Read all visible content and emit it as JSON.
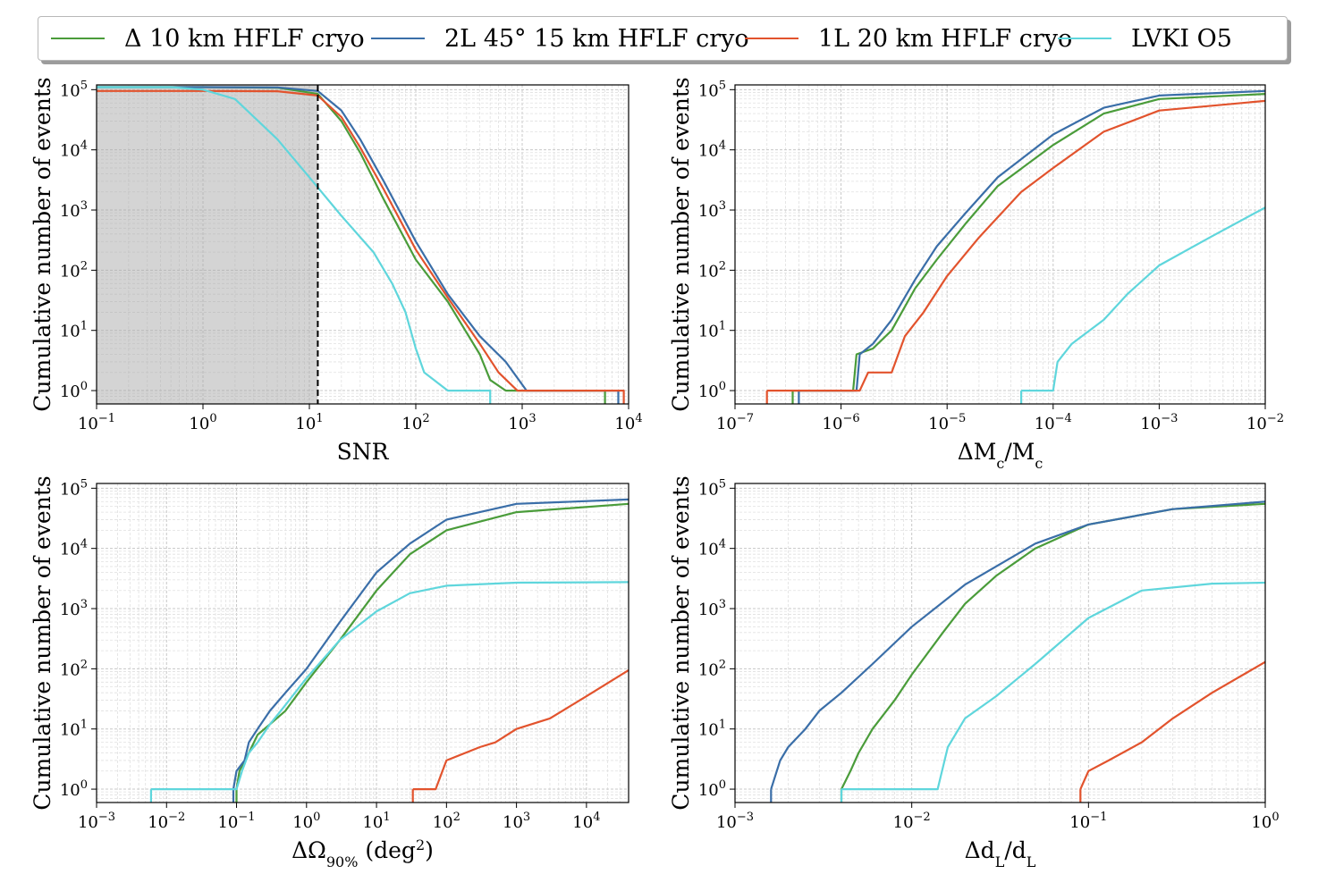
{
  "legend": [
    {
      "label": "Δ 10 km HFLF cryo",
      "color": "#4a9c3a"
    },
    {
      "label": "2L 45° 15 km HFLF cryo",
      "color": "#3a6ea8"
    },
    {
      "label": "1L 20 km HFLF cryo",
      "color": "#e2532d"
    },
    {
      "label": "LVKI O5",
      "color": "#5fd6dc"
    }
  ],
  "chart_data": [
    {
      "type": "line",
      "panel": "top-left",
      "xlabel": "SNR",
      "ylabel": "Cumulative number of events",
      "xscale": "log",
      "yscale": "log",
      "xlim": [
        0.1,
        10000
      ],
      "ylim": [
        0.6,
        120000
      ],
      "xticks": [
        0.1,
        1,
        10,
        100,
        1000,
        10000
      ],
      "yticks": [
        1,
        10,
        100,
        1000,
        10000,
        100000
      ],
      "grid": true,
      "threshold_line": 12,
      "shaded_region": [
        0.1,
        12
      ],
      "series": [
        {
          "name": "Δ 10 km HFLF cryo",
          "points": [
            [
              0.1,
              110000
            ],
            [
              1,
              110000
            ],
            [
              5,
              108000
            ],
            [
              12,
              85000
            ],
            [
              20,
              30000
            ],
            [
              30,
              9000
            ],
            [
              50,
              1500
            ],
            [
              100,
              150
            ],
            [
              200,
              30
            ],
            [
              400,
              4
            ],
            [
              500,
              1.5
            ],
            [
              700,
              1
            ],
            [
              6000,
              1
            ]
          ]
        },
        {
          "name": "2L 45° 15 km HFLF cryo",
          "points": [
            [
              0.1,
              110000
            ],
            [
              1,
              110000
            ],
            [
              5,
              109000
            ],
            [
              12,
              95000
            ],
            [
              20,
              45000
            ],
            [
              30,
              15000
            ],
            [
              50,
              3000
            ],
            [
              100,
              300
            ],
            [
              200,
              40
            ],
            [
              400,
              8
            ],
            [
              700,
              3
            ],
            [
              1100,
              1
            ],
            [
              8000,
              1
            ]
          ]
        },
        {
          "name": "1L 20 km HFLF cryo",
          "points": [
            [
              0.1,
              95000
            ],
            [
              1,
              95000
            ],
            [
              5,
              94000
            ],
            [
              12,
              80000
            ],
            [
              20,
              35000
            ],
            [
              30,
              11000
            ],
            [
              50,
              2200
            ],
            [
              100,
              220
            ],
            [
              200,
              35
            ],
            [
              400,
              6
            ],
            [
              600,
              2
            ],
            [
              900,
              1
            ],
            [
              9000,
              1
            ]
          ]
        },
        {
          "name": "LVKI O5",
          "points": [
            [
              0.1,
              110000
            ],
            [
              0.5,
              110000
            ],
            [
              1,
              100000
            ],
            [
              2,
              70000
            ],
            [
              5,
              15000
            ],
            [
              10,
              3500
            ],
            [
              20,
              800
            ],
            [
              40,
              200
            ],
            [
              60,
              60
            ],
            [
              80,
              20
            ],
            [
              100,
              5
            ],
            [
              120,
              2
            ],
            [
              200,
              1
            ],
            [
              500,
              1
            ]
          ]
        }
      ]
    },
    {
      "type": "line",
      "panel": "top-right",
      "xlabel": "ΔMc/Mc",
      "ylabel": "Cumulative number of events",
      "xscale": "log",
      "yscale": "log",
      "xlim": [
        1e-07,
        0.01
      ],
      "ylim": [
        0.6,
        120000
      ],
      "xticks": [
        1e-07,
        1e-06,
        1e-05,
        0.0001,
        0.001,
        0.01
      ],
      "yticks": [
        1,
        10,
        100,
        1000,
        10000,
        100000
      ],
      "grid": true,
      "series": [
        {
          "name": "Δ 10 km HFLF cryo",
          "points": [
            [
              3.5e-07,
              1
            ],
            [
              1.3e-06,
              1
            ],
            [
              1.4e-06,
              4
            ],
            [
              2e-06,
              5
            ],
            [
              3e-06,
              10
            ],
            [
              5e-06,
              50
            ],
            [
              8e-06,
              150
            ],
            [
              1.5e-05,
              600
            ],
            [
              3e-05,
              2500
            ],
            [
              0.0001,
              12000
            ],
            [
              0.0003,
              40000
            ],
            [
              0.001,
              70000
            ],
            [
              0.01,
              85000
            ]
          ]
        },
        {
          "name": "2L 45° 15 km HFLF cryo",
          "points": [
            [
              4e-07,
              1
            ],
            [
              1.4e-06,
              1
            ],
            [
              1.5e-06,
              4
            ],
            [
              2e-06,
              6
            ],
            [
              3e-06,
              15
            ],
            [
              5e-06,
              70
            ],
            [
              8e-06,
              250
            ],
            [
              1.5e-05,
              900
            ],
            [
              3e-05,
              3500
            ],
            [
              0.0001,
              18000
            ],
            [
              0.0003,
              50000
            ],
            [
              0.001,
              80000
            ],
            [
              0.01,
              95000
            ]
          ]
        },
        {
          "name": "1L 20 km HFLF cryo",
          "points": [
            [
              2e-07,
              1
            ],
            [
              1.5e-06,
              1
            ],
            [
              1.8e-06,
              2
            ],
            [
              3e-06,
              2
            ],
            [
              4e-06,
              8
            ],
            [
              6e-06,
              20
            ],
            [
              1e-05,
              80
            ],
            [
              2e-05,
              350
            ],
            [
              5e-05,
              2000
            ],
            [
              0.0001,
              5000
            ],
            [
              0.0003,
              20000
            ],
            [
              0.001,
              45000
            ],
            [
              0.01,
              65000
            ]
          ]
        },
        {
          "name": "LVKI O5",
          "points": [
            [
              5e-05,
              1
            ],
            [
              0.0001,
              1
            ],
            [
              0.00011,
              3
            ],
            [
              0.00015,
              6
            ],
            [
              0.0003,
              15
            ],
            [
              0.0005,
              40
            ],
            [
              0.001,
              120
            ],
            [
              0.003,
              350
            ],
            [
              0.01,
              1100
            ]
          ]
        }
      ]
    },
    {
      "type": "line",
      "panel": "bottom-left",
      "xlabel": "ΔΩ90% (deg²)",
      "ylabel": "Cumulative number of events",
      "xscale": "log",
      "yscale": "log",
      "xlim": [
        0.001,
        40000
      ],
      "ylim": [
        0.6,
        120000
      ],
      "xticks": [
        0.001,
        0.01,
        0.1,
        1,
        10,
        100,
        1000,
        10000
      ],
      "yticks": [
        1,
        10,
        100,
        1000,
        10000,
        100000
      ],
      "grid": true,
      "series": [
        {
          "name": "Δ 10 km HFLF cryo",
          "points": [
            [
              0.1,
              1
            ],
            [
              0.11,
              2
            ],
            [
              0.15,
              4
            ],
            [
              0.2,
              8
            ],
            [
              0.3,
              12
            ],
            [
              0.5,
              20
            ],
            [
              1,
              60
            ],
            [
              3,
              300
            ],
            [
              10,
              2000
            ],
            [
              30,
              8000
            ],
            [
              100,
              20000
            ],
            [
              1000,
              40000
            ],
            [
              40000,
              55000
            ]
          ]
        },
        {
          "name": "2L 45° 15 km HFLF cryo",
          "points": [
            [
              0.09,
              1
            ],
            [
              0.1,
              2
            ],
            [
              0.13,
              3
            ],
            [
              0.15,
              6
            ],
            [
              0.2,
              10
            ],
            [
              0.3,
              20
            ],
            [
              0.5,
              40
            ],
            [
              1,
              100
            ],
            [
              3,
              600
            ],
            [
              10,
              4000
            ],
            [
              30,
              12000
            ],
            [
              100,
              30000
            ],
            [
              1000,
              55000
            ],
            [
              40000,
              65000
            ]
          ]
        },
        {
          "name": "1L 20 km HFLF cryo",
          "points": [
            [
              33,
              1
            ],
            [
              70,
              1
            ],
            [
              100,
              3
            ],
            [
              300,
              5
            ],
            [
              500,
              6
            ],
            [
              1000,
              10
            ],
            [
              3000,
              15
            ],
            [
              10000,
              35
            ],
            [
              40000,
              95
            ]
          ]
        },
        {
          "name": "LVKI O5",
          "points": [
            [
              0.006,
              1
            ],
            [
              0.1,
              1
            ],
            [
              0.12,
              2
            ],
            [
              0.15,
              4
            ],
            [
              0.2,
              6
            ],
            [
              0.3,
              12
            ],
            [
              0.5,
              25
            ],
            [
              1,
              70
            ],
            [
              3,
              300
            ],
            [
              10,
              900
            ],
            [
              30,
              1800
            ],
            [
              100,
              2400
            ],
            [
              1000,
              2700
            ],
            [
              40000,
              2750
            ]
          ]
        }
      ]
    },
    {
      "type": "line",
      "panel": "bottom-right",
      "xlabel": "ΔdL/dL",
      "ylabel": "Cumulative number of events",
      "xscale": "log",
      "yscale": "log",
      "xlim": [
        0.001,
        1
      ],
      "ylim": [
        0.6,
        120000
      ],
      "xticks": [
        0.001,
        0.01,
        0.1,
        1
      ],
      "yticks": [
        1,
        10,
        100,
        1000,
        10000,
        100000
      ],
      "grid": true,
      "series": [
        {
          "name": "Δ 10 km HFLF cryo",
          "points": [
            [
              0.004,
              1
            ],
            [
              0.0045,
              2
            ],
            [
              0.005,
              4
            ],
            [
              0.006,
              10
            ],
            [
              0.008,
              30
            ],
            [
              0.01,
              80
            ],
            [
              0.015,
              400
            ],
            [
              0.02,
              1200
            ],
            [
              0.03,
              3500
            ],
            [
              0.05,
              10000
            ],
            [
              0.1,
              25000
            ],
            [
              0.3,
              45000
            ],
            [
              1,
              55000
            ]
          ]
        },
        {
          "name": "2L 45° 15 km HFLF cryo",
          "points": [
            [
              0.0016,
              1
            ],
            [
              0.0018,
              3
            ],
            [
              0.002,
              5
            ],
            [
              0.0025,
              10
            ],
            [
              0.003,
              20
            ],
            [
              0.004,
              40
            ],
            [
              0.006,
              120
            ],
            [
              0.01,
              500
            ],
            [
              0.02,
              2500
            ],
            [
              0.05,
              12000
            ],
            [
              0.1,
              25000
            ],
            [
              0.3,
              45000
            ],
            [
              1,
              60000
            ]
          ]
        },
        {
          "name": "1L 20 km HFLF cryo",
          "points": [
            [
              0.09,
              1
            ],
            [
              0.1,
              2
            ],
            [
              0.13,
              3
            ],
            [
              0.2,
              6
            ],
            [
              0.3,
              15
            ],
            [
              0.5,
              40
            ],
            [
              1,
              130
            ]
          ]
        },
        {
          "name": "LVKI O5",
          "points": [
            [
              0.004,
              1
            ],
            [
              0.014,
              1
            ],
            [
              0.016,
              5
            ],
            [
              0.02,
              15
            ],
            [
              0.03,
              35
            ],
            [
              0.05,
              120
            ],
            [
              0.1,
              700
            ],
            [
              0.2,
              2000
            ],
            [
              0.5,
              2600
            ],
            [
              1,
              2700
            ]
          ]
        }
      ]
    }
  ],
  "panels_text": {
    "tl_xlabel": "SNR",
    "ylabel": "Cumulative number of events"
  }
}
